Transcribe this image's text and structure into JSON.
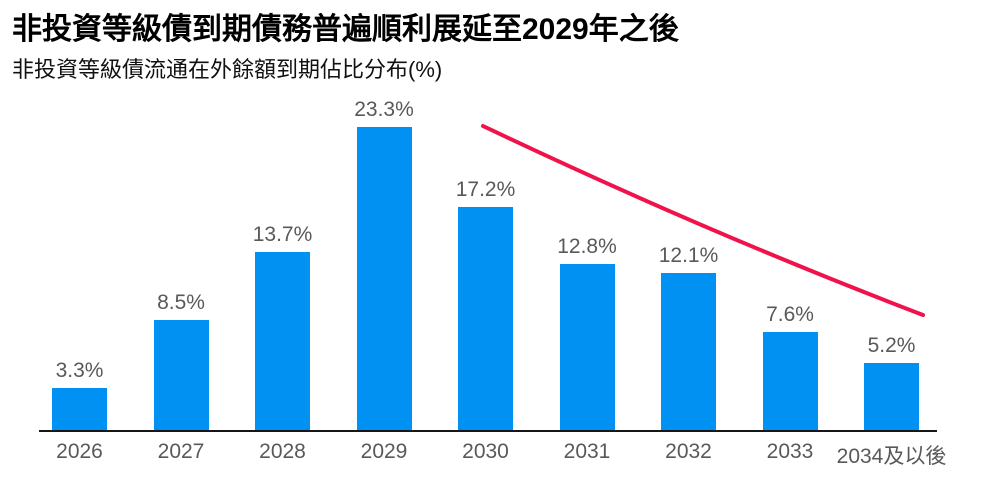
{
  "header": {
    "title": "非投資等級債到期債務普遍順利展延至2029年之後",
    "subtitle": "非投資等級債流通在外餘額到期佔比分布(%)"
  },
  "colors": {
    "bar": "#0191F2",
    "trend_line": "#F0124A",
    "data_label": "#595959",
    "axis_label": "#595959",
    "axis_line": "#161616",
    "title": "#000000",
    "background": "#FFFFFF"
  },
  "chart_data": {
    "type": "bar",
    "title": "非投資等級債到期債務普遍順利展延至2029年之後",
    "subtitle": "非投資等級債流通在外餘額到期佔比分布(%)",
    "categories": [
      "2026",
      "2027",
      "2028",
      "2029",
      "2030",
      "2031",
      "2032",
      "2033",
      "2034及以後"
    ],
    "values": [
      3.3,
      8.5,
      13.7,
      23.3,
      17.2,
      12.8,
      12.1,
      7.6,
      5.2
    ],
    "data_labels": [
      "3.3%",
      "8.5%",
      "13.7%",
      "23.3%",
      "17.2%",
      "12.8%",
      "12.1%",
      "7.6%",
      "5.2%"
    ],
    "xlabel": "",
    "ylabel": "",
    "ylim": [
      0,
      25
    ],
    "grid": false,
    "legend": "none",
    "y_axis_visible": false,
    "annotations": [
      {
        "type": "trend-line",
        "description": "red downward trend line from above the 2030 bar to above the 2034及以後 bar",
        "color": "#F0124A"
      }
    ]
  }
}
